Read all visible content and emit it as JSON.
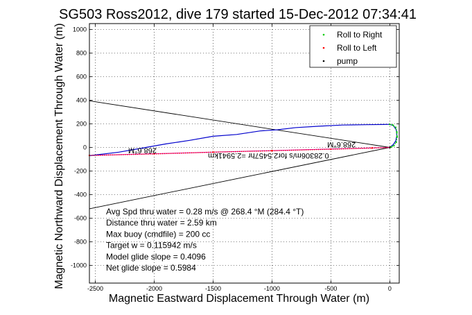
{
  "chart_data": {
    "type": "line",
    "title": "SG503 Ross2012, dive 179 started 15-Dec-2012 07:34:41",
    "xlabel": "Magnetic Eastward Displacement Through Water (m)",
    "ylabel": "Magnetic Northward Displacement Through Water (m)",
    "xlim": [
      -2550,
      80
    ],
    "ylim": [
      -1150,
      1050
    ],
    "x_ticks": [
      -2500,
      -2000,
      -1500,
      -1000,
      -500,
      0
    ],
    "y_ticks": [
      1000,
      800,
      600,
      400,
      200,
      0,
      -200,
      -400,
      -600,
      -800,
      -1000
    ],
    "grid": true,
    "legend_position": "top-right",
    "series": [
      {
        "name": "Roll to Right",
        "color": "#00cc00",
        "marker": "dot",
        "x": [
          0,
          25,
          50,
          60,
          62,
          55,
          35,
          10
        ],
        "y": [
          195,
          190,
          170,
          130,
          90,
          45,
          15,
          3
        ]
      },
      {
        "name": "Roll to Left",
        "color": "#ff0000",
        "marker": "dot",
        "x": [
          -2550,
          -2000,
          -1500,
          -1000,
          -500,
          -150,
          0
        ],
        "y": [
          -68,
          -55,
          -40,
          -28,
          -15,
          -5,
          0
        ]
      },
      {
        "name": "pump",
        "color": "#000000",
        "marker": "dot",
        "x": [
          0
        ],
        "y": [
          0
        ]
      }
    ],
    "track": {
      "color": "#0000cc",
      "x": [
        -2550,
        -2300,
        -2100,
        -1900,
        -1700,
        -1500,
        -1300,
        -1100,
        -950,
        -800,
        -600,
        -400,
        -200,
        -50,
        0,
        30,
        55,
        60,
        50,
        30,
        10,
        0
      ],
      "y": [
        -70,
        -40,
        -5,
        30,
        60,
        95,
        110,
        140,
        150,
        168,
        180,
        190,
        193,
        195,
        196,
        185,
        150,
        100,
        55,
        25,
        8,
        0
      ]
    },
    "heading_line": {
      "color": "#cc00cc",
      "x": [
        0,
        -2550
      ],
      "y": [
        0,
        -68
      ]
    },
    "envelope_lines": [
      {
        "color": "#000000",
        "x": [
          0,
          -2550
        ],
        "y": [
          0,
          395
        ]
      },
      {
        "color": "#000000",
        "x": [
          0,
          -2550
        ],
        "y": [
          0,
          -520
        ]
      }
    ],
    "annotations": {
      "heading_left": "268.6°M",
      "heading_right": "268.6°M",
      "speed_label": "0.28306m/s for2.5457hr =2.5941km",
      "stats": [
        "Avg Spd thru water =  0.28 m/s @ 268.4   °M (284.4 °T)",
        "Distance thru water =  2.59 km",
        "Max buoy (cmdfile) = 200 cc",
        "Target w = 0.115942 m/s",
        "Model glide slope = 0.4096",
        "Net glide slope = 0.5984"
      ]
    }
  }
}
